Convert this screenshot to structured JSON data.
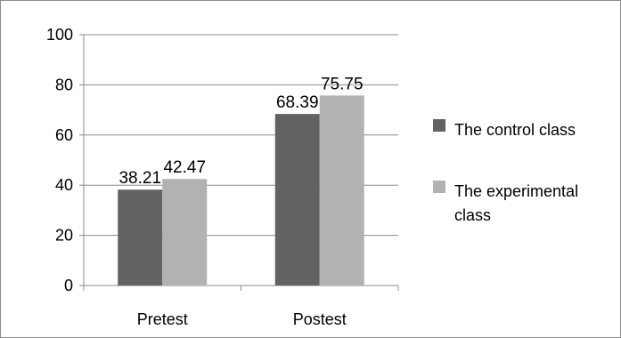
{
  "chart_data": {
    "type": "bar",
    "title": "",
    "xlabel": "",
    "ylabel": "",
    "categories": [
      "Pretest",
      "Postest"
    ],
    "series": [
      {
        "name": "The control class",
        "values": [
          38.21,
          68.39
        ],
        "labels": [
          "38.21",
          "68.39"
        ],
        "color": "#626262"
      },
      {
        "name": "The experimental class",
        "values": [
          42.47,
          75.75
        ],
        "labels": [
          "42.47",
          "75.75"
        ],
        "color": "#b2b2b2"
      }
    ],
    "ylim": [
      0,
      100
    ],
    "yticks": [
      0,
      20,
      40,
      60,
      80,
      100
    ],
    "ytick_labels": [
      "0",
      "20",
      "40",
      "60",
      "80",
      "100"
    ],
    "grid": true,
    "legend": "right",
    "legend_lines": [
      [
        "The control class"
      ],
      [
        "The experimental",
        "class"
      ]
    ]
  }
}
